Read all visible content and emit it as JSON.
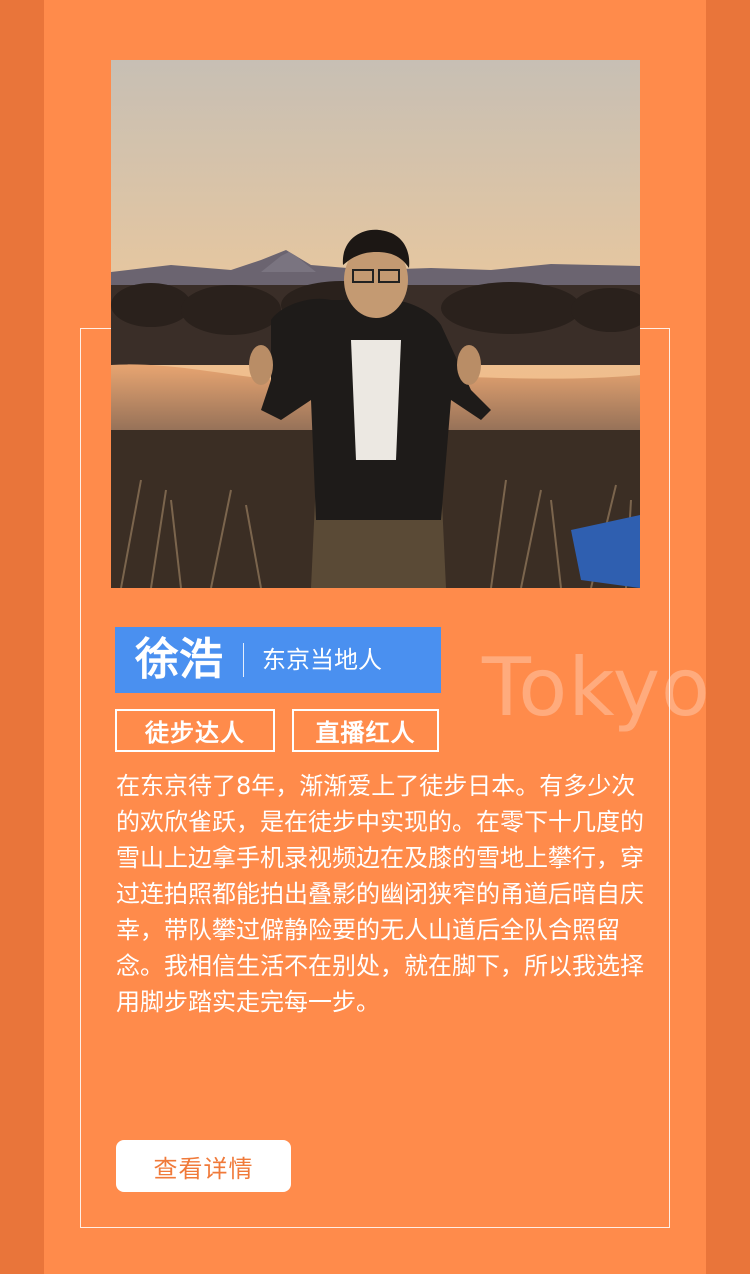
{
  "profile": {
    "name": "徐浩",
    "role": "东京当地人",
    "watermark": "Tokyo",
    "tags": [
      "徒步达人",
      "直播红人"
    ],
    "bio": "在东京待了8年，渐渐爱上了徒步日本。有多少次的欢欣雀跃，是在徒步中实现的。在零下十几度的雪山上边拿手机录视频边在及膝的雪地上攀行，穿过连拍照都能拍出叠影的幽闭狭窄的甬道后暗自庆幸，带队攀过僻静险要的无人山道后全队合照留念。我相信生活不在别处，就在脚下，所以我选择用脚步踏实走完每一步。",
    "button_label": "查看详情"
  },
  "colors": {
    "outer_bg": "#e9753a",
    "panel_bg": "#ff8b4b",
    "name_bar": "#4a90f0",
    "button_text": "#f07a3a"
  }
}
